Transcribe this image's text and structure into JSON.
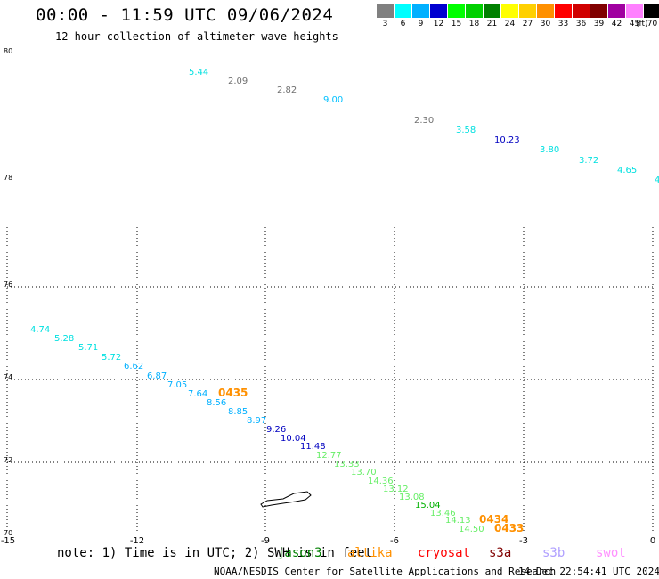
{
  "header": {
    "title": "00:00 - 11:59 UTC 09/06/2024",
    "subtitle": "12 hour collection of altimeter wave heights"
  },
  "legend": {
    "labels": [
      "3",
      "6",
      "9",
      "12",
      "15",
      "18",
      "21",
      "24",
      "27",
      "30",
      "33",
      "36",
      "39",
      "42",
      "45",
      "70"
    ],
    "unit": "(ft)",
    "colors": [
      "#808080",
      "#00ffff",
      "#00b0ff",
      "#0000d0",
      "#00ff00",
      "#00d000",
      "#008000",
      "#ffff00",
      "#ffd000",
      "#ff9000",
      "#ff0000",
      "#d00000",
      "#800000",
      "#a000a0",
      "#ff80ff",
      "#000000"
    ]
  },
  "axes": {
    "lon_ticks": [
      "-15",
      "-12",
      "-9",
      "-6",
      "-3",
      "0"
    ],
    "lat_ticks": [
      "80",
      "78",
      "76",
      "74",
      "72",
      "70"
    ]
  },
  "observations": [
    {
      "v": "5.44",
      "c": "#00e0e0"
    },
    {
      "v": "2.09",
      "c": "#707070"
    },
    {
      "v": "2.82",
      "c": "#707070"
    },
    {
      "v": "9.00",
      "c": "#00c0ff"
    },
    {
      "v": "2.30",
      "c": "#707070"
    },
    {
      "v": "3.58",
      "c": "#00e0e0"
    },
    {
      "v": "10.23",
      "c": "#0000c0"
    },
    {
      "v": "3.80",
      "c": "#00e0e0"
    },
    {
      "v": "3.72",
      "c": "#00e0e0"
    },
    {
      "v": "4.65",
      "c": "#00e0e0"
    },
    {
      "v": "4",
      "c": "#00e0e0"
    },
    {
      "v": "4.74",
      "c": "#00e0e0"
    },
    {
      "v": "5.28",
      "c": "#00e0e0"
    },
    {
      "v": "5.71",
      "c": "#00e0e0"
    },
    {
      "v": "5.72",
      "c": "#00e0e0"
    },
    {
      "v": "6.62",
      "c": "#00b0ff"
    },
    {
      "v": "6.87",
      "c": "#00b0ff"
    },
    {
      "v": "7.05",
      "c": "#00b0ff"
    },
    {
      "v": "7.64",
      "c": "#00b0ff"
    },
    {
      "v": "0435",
      "c": "#ff9000"
    },
    {
      "v": "8.56",
      "c": "#00b0ff"
    },
    {
      "v": "8.85",
      "c": "#00b0ff"
    },
    {
      "v": "8.97",
      "c": "#00b0ff"
    },
    {
      "v": "9.26",
      "c": "#0000c0"
    },
    {
      "v": "10.04",
      "c": "#0000c0"
    },
    {
      "v": "11.48",
      "c": "#0000c0"
    },
    {
      "v": "12.77",
      "c": "#66ee66"
    },
    {
      "v": "13.33",
      "c": "#66ee66"
    },
    {
      "v": "13.70",
      "c": "#66ee66"
    },
    {
      "v": "14.36",
      "c": "#66ee66"
    },
    {
      "v": "13.12",
      "c": "#66ee66"
    },
    {
      "v": "13.08",
      "c": "#66ee66"
    },
    {
      "v": "15.04",
      "c": "#00b000"
    },
    {
      "v": "13.46",
      "c": "#66ee66"
    },
    {
      "v": "14.13",
      "c": "#66ee66"
    },
    {
      "v": "0434",
      "c": "#ff9000"
    },
    {
      "v": "14.50",
      "c": "#66ee66"
    },
    {
      "v": "0433",
      "c": "#ff9000"
    }
  ],
  "footer": {
    "note": "note: 1) Time is in UTC; 2) SWH is in feet",
    "satellites": [
      {
        "name": "jason3",
        "color": "#008000"
      },
      {
        "name": "altika",
        "color": "#ff9000"
      },
      {
        "name": "cryosat",
        "color": "#ff0000"
      },
      {
        "name": "s3a",
        "color": "#800000"
      },
      {
        "name": "s3b",
        "color": "#b0a0ff"
      },
      {
        "name": "swot",
        "color": "#ff90ff"
      }
    ],
    "credit": "NOAA/NESDIS Center for Satellite Applications and Research",
    "timestamp": "14 Dec 22:54:41 UTC 2024"
  }
}
